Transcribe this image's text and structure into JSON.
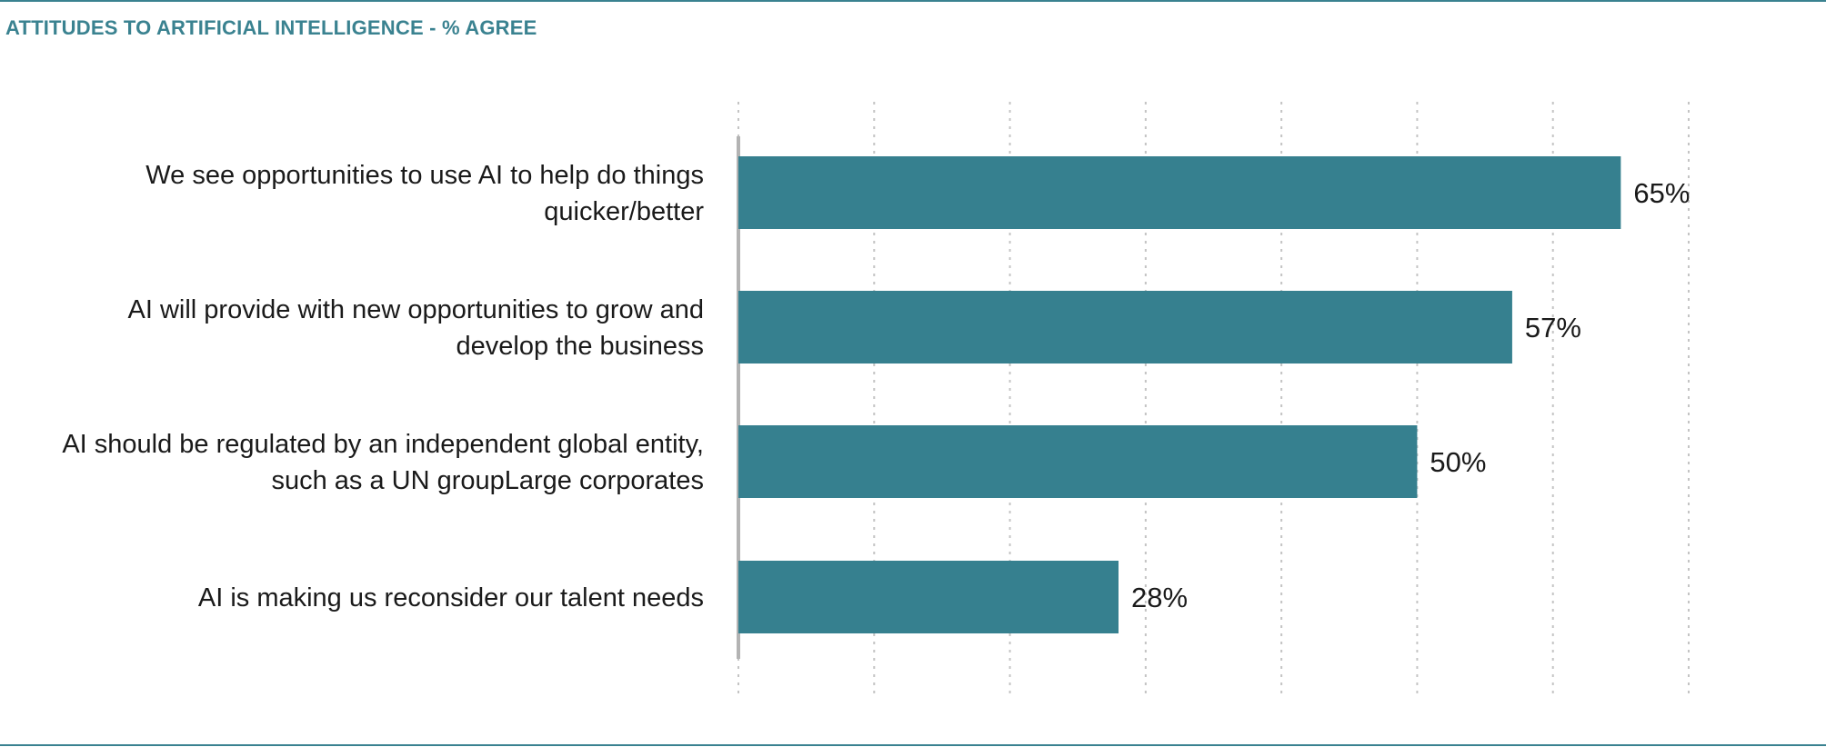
{
  "chart_data": {
    "type": "bar",
    "orientation": "horizontal",
    "title": "ATTITUDES TO ARTIFICIAL INTELLIGENCE - % AGREE",
    "categories": [
      [
        "We see opportunities to use AI to help do things",
        "quicker/better"
      ],
      [
        "AI will provide with new opportunities to grow and",
        "develop the business"
      ],
      [
        "AI should be regulated by an independent global entity,",
        "such as a UN groupLarge corporates"
      ],
      [
        "AI is making us reconsider our talent needs"
      ]
    ],
    "values": [
      65,
      57,
      50,
      28
    ],
    "value_labels": [
      "65%",
      "57%",
      "50%",
      "28%"
    ],
    "xlim": [
      0,
      70
    ],
    "grid": true,
    "bar_color": "#36808f",
    "axis_color": "#b3b3b3",
    "grid_color": "#c4c4c4",
    "title_color": "#3a8290"
  }
}
